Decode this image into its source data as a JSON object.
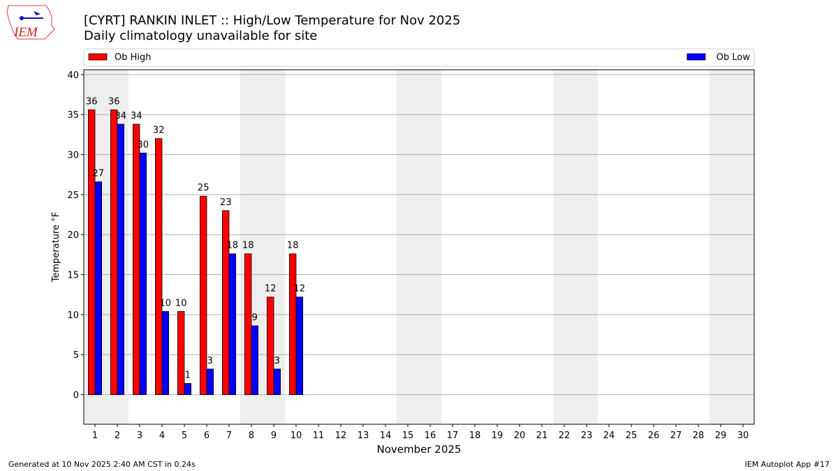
{
  "logo_text": "IEM",
  "footer_left": "Generated at 10 Nov 2025 2:40 AM CST in 0.24s",
  "footer_right": "IEM Autoplot App #17",
  "chart_data": {
    "type": "bar",
    "title": "[CYRT] RANKIN INLET :: High/Low Temperature for Nov 2025",
    "subtitle": "Daily climatology unavailable for site",
    "x_label": "November 2025",
    "y_label": "Temperature °F",
    "categories": [
      "1",
      "2",
      "3",
      "4",
      "5",
      "6",
      "7",
      "8",
      "9",
      "10",
      "11",
      "12",
      "13",
      "14",
      "15",
      "16",
      "17",
      "18",
      "19",
      "20",
      "21",
      "22",
      "23",
      "24",
      "25",
      "26",
      "27",
      "28",
      "29",
      "30"
    ],
    "shaded_days": [
      1,
      2,
      8,
      9,
      15,
      16,
      22,
      23,
      29,
      30
    ],
    "series": [
      {
        "name": "Ob High",
        "color": "#ff0000",
        "values": [
          35.6,
          35.6,
          33.8,
          32,
          10.4,
          24.8,
          23,
          17.6,
          12.2,
          17.6,
          null,
          null,
          null,
          null,
          null,
          null,
          null,
          null,
          null,
          null,
          null,
          null,
          null,
          null,
          null,
          null,
          null,
          null,
          null,
          null
        ],
        "value_labels": [
          "36",
          "36",
          "34",
          "32",
          "10",
          "25",
          "23",
          "18",
          "12",
          "18",
          null,
          null,
          null,
          null,
          null,
          null,
          null,
          null,
          null,
          null,
          null,
          null,
          null,
          null,
          null,
          null,
          null,
          null,
          null,
          null
        ]
      },
      {
        "name": "Ob Low",
        "color": "#0000ff",
        "values": [
          26.6,
          33.8,
          30.2,
          10.4,
          1.4,
          3.2,
          17.6,
          8.6,
          3.2,
          12.2,
          null,
          null,
          null,
          null,
          null,
          null,
          null,
          null,
          null,
          null,
          null,
          null,
          null,
          null,
          null,
          null,
          null,
          null,
          null,
          null
        ],
        "value_labels": [
          "27",
          "34",
          "30",
          "10",
          "1",
          "3",
          "18",
          "9",
          "3",
          "12",
          null,
          null,
          null,
          null,
          null,
          null,
          null,
          null,
          null,
          null,
          null,
          null,
          null,
          null,
          null,
          null,
          null,
          null,
          null,
          null
        ]
      }
    ],
    "ylim": [
      -3.7,
      40.6
    ],
    "yticks": [
      0,
      5,
      10,
      15,
      20,
      25,
      30,
      35,
      40
    ],
    "grid": true,
    "legend": "top"
  }
}
